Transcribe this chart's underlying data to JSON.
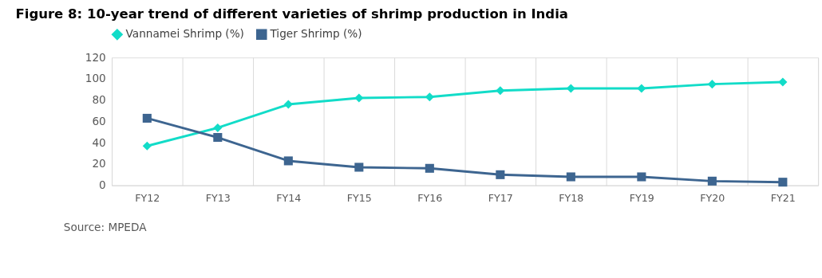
{
  "chart_data": {
    "type": "line",
    "title": "Figure 8: 10-year trend of different varieties of shrimp production in India",
    "categories": [
      "FY12",
      "FY13",
      "FY14",
      "FY15",
      "FY16",
      "FY17",
      "FY18",
      "FY19",
      "FY20",
      "FY21"
    ],
    "series": [
      {
        "name": "Vannamei Shrimp (%)",
        "color": "#12dcc8",
        "marker": "diamond",
        "values": [
          37,
          54,
          76,
          82,
          83,
          89,
          91,
          91,
          95,
          97
        ]
      },
      {
        "name": "Tiger Shrimp (%)",
        "color": "#3d6590",
        "marker": "square",
        "values": [
          63,
          45,
          23,
          17,
          16,
          10,
          8,
          8,
          4,
          3
        ]
      }
    ],
    "ylim": [
      0,
      120
    ],
    "yticks": [
      0,
      20,
      40,
      60,
      80,
      100,
      120
    ],
    "grid": "x",
    "legend": "top",
    "line_style": "solid",
    "annotations": [
      "Source: MPEDA"
    ]
  }
}
